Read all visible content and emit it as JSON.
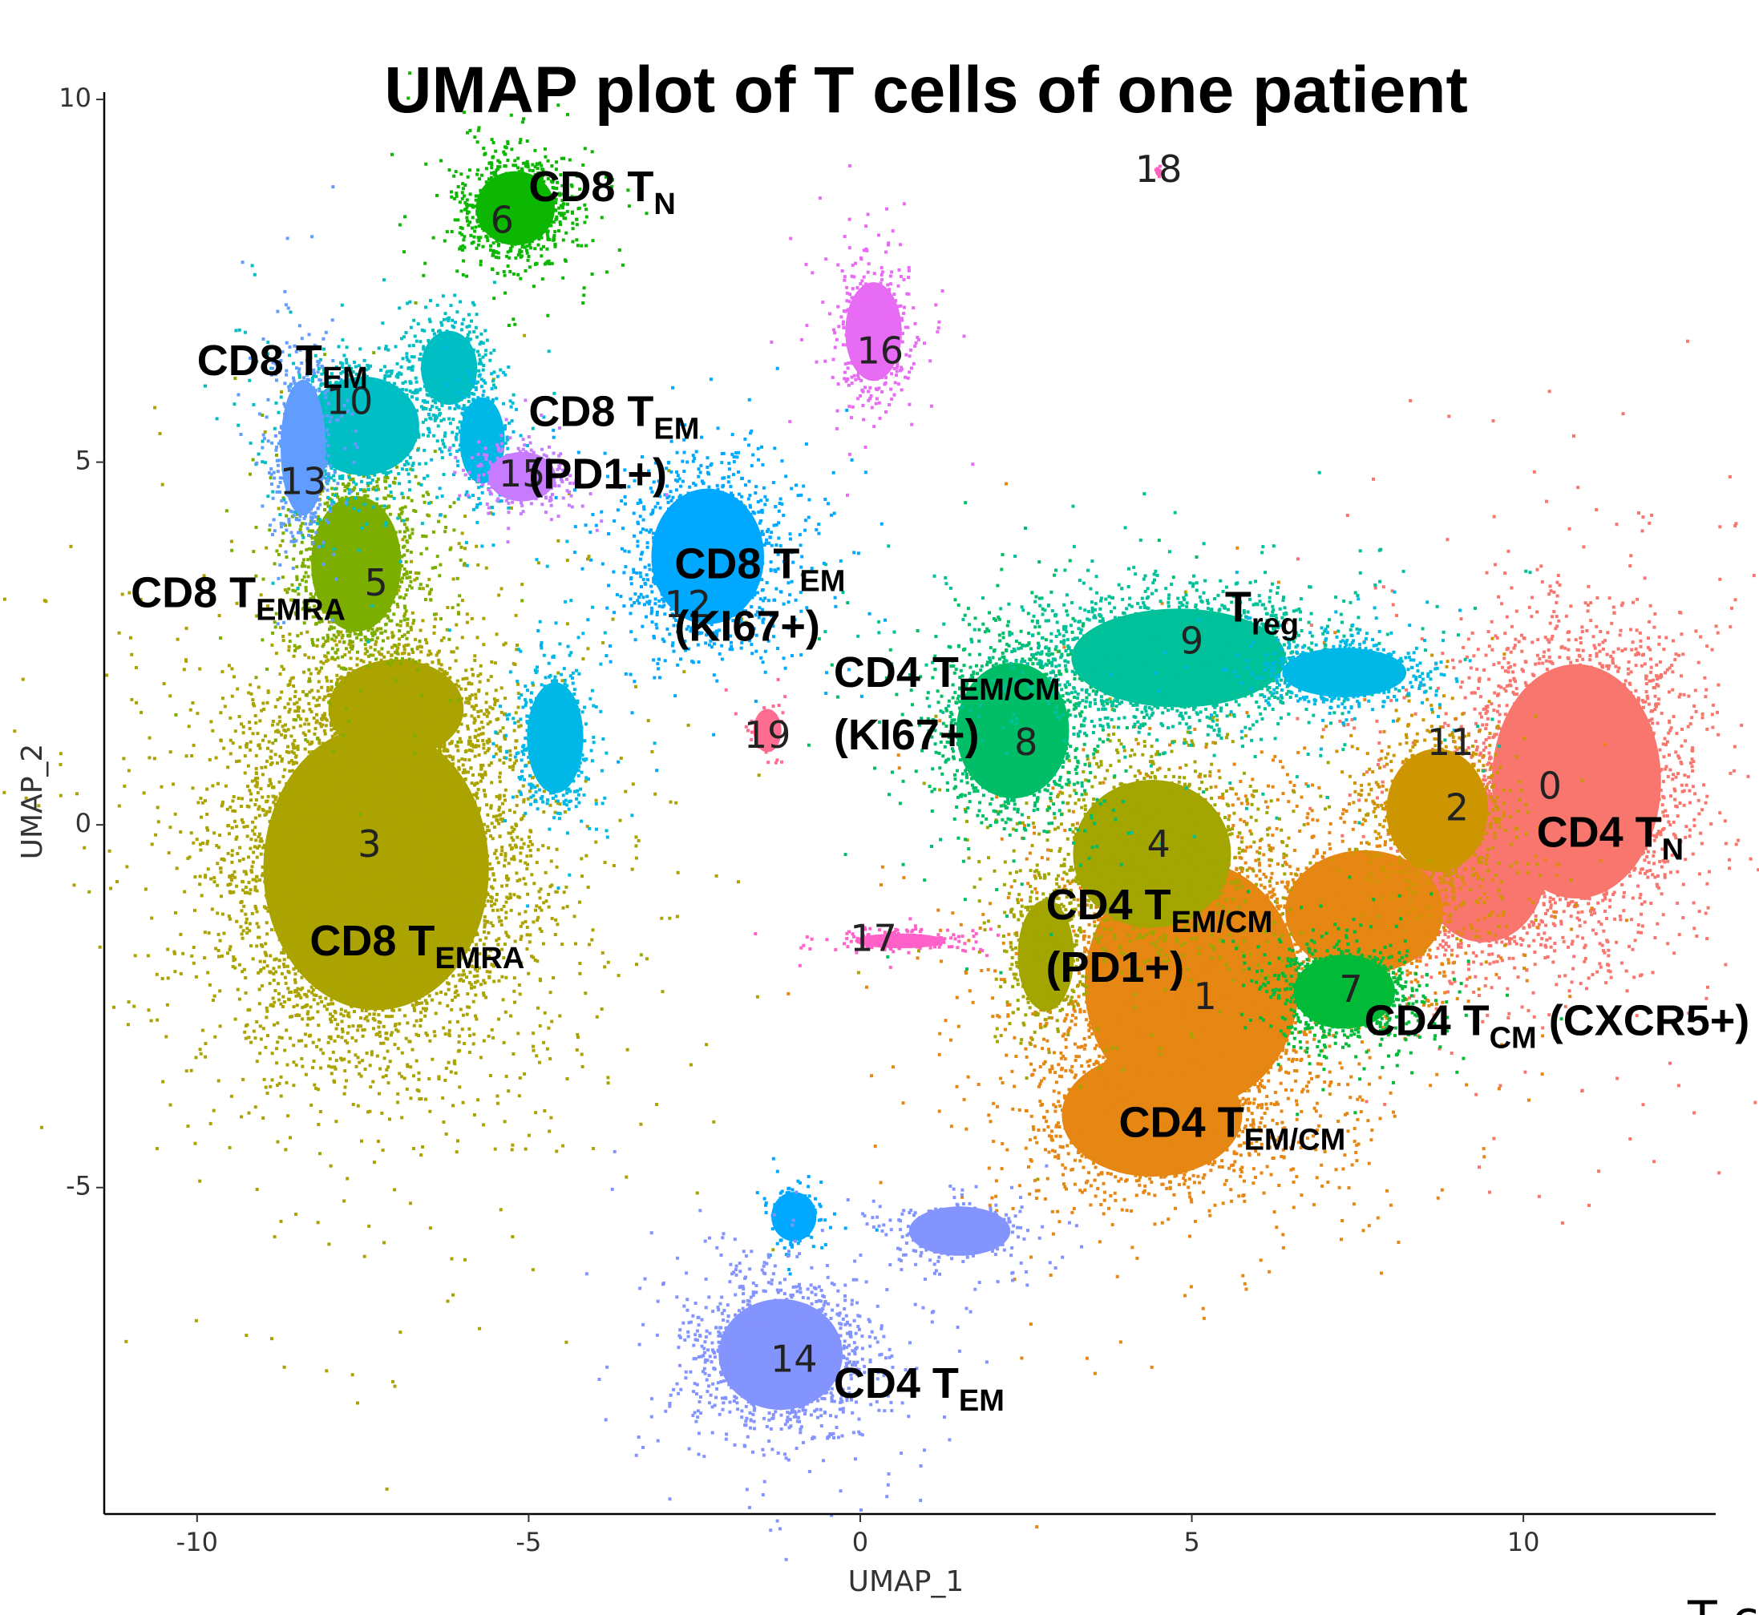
{
  "chart_data": {
    "type": "scatter",
    "title": "UMAP plot of T cells of one patient",
    "xlabel": "UMAP_1",
    "ylabel": "UMAP_2",
    "xlim": [
      -11.4,
      12.9
    ],
    "ylim": [
      -9.5,
      10.1
    ],
    "xticks": [
      -10,
      -5,
      0,
      5,
      10
    ],
    "yticks": [
      -5,
      0,
      5,
      10
    ],
    "grid": false,
    "legend": "none",
    "clusters": [
      {
        "id": "0",
        "color": "#F8766D",
        "label_xy": [
          10.4,
          0.5
        ],
        "blobs": [
          [
            10.8,
            0.6,
            1.5,
            1.9,
            2800
          ],
          [
            9.4,
            -0.6,
            1.1,
            1.2,
            900
          ]
        ]
      },
      {
        "id": "1",
        "color": "#E68613",
        "label_xy": [
          5.2,
          -2.4
        ],
        "blobs": [
          [
            5.0,
            -2.2,
            1.9,
            2.0,
            2600
          ],
          [
            4.4,
            -4.0,
            1.6,
            1.0,
            1200
          ],
          [
            7.6,
            -1.2,
            1.4,
            1.0,
            900
          ]
        ]
      },
      {
        "id": "2",
        "color": "#CD9600",
        "label_xy": [
          9.0,
          0.2
        ],
        "blobs": [
          [
            8.7,
            0.2,
            0.9,
            1.0,
            900
          ]
        ]
      },
      {
        "id": "3",
        "color": "#ABA300",
        "label_xy": [
          -7.4,
          -0.3
        ],
        "blobs": [
          [
            -7.3,
            -0.6,
            2.0,
            2.3,
            5200
          ],
          [
            -7.0,
            1.6,
            1.2,
            0.8,
            900
          ]
        ]
      },
      {
        "id": "4",
        "color": "#A3A500",
        "label_xy": [
          4.5,
          -0.3
        ],
        "blobs": [
          [
            4.4,
            -0.4,
            1.4,
            1.2,
            1300
          ],
          [
            2.8,
            -1.8,
            0.5,
            0.9,
            400
          ]
        ]
      },
      {
        "id": "5",
        "color": "#7CAE00",
        "label_xy": [
          -7.3,
          3.3
        ],
        "blobs": [
          [
            -7.6,
            3.6,
            0.8,
            1.1,
            1400
          ]
        ]
      },
      {
        "id": "6",
        "color": "#0CB702",
        "label_xy": [
          -5.4,
          8.3
        ],
        "blobs": [
          [
            -5.2,
            8.5,
            0.7,
            0.6,
            1000
          ]
        ]
      },
      {
        "id": "7",
        "color": "#00BA38",
        "label_xy": [
          7.4,
          -2.3
        ],
        "blobs": [
          [
            7.3,
            -2.3,
            0.9,
            0.6,
            900
          ]
        ]
      },
      {
        "id": "8",
        "color": "#00BE67",
        "label_xy": [
          2.5,
          1.1
        ],
        "blobs": [
          [
            2.3,
            1.3,
            1.0,
            1.1,
            1300
          ]
        ]
      },
      {
        "id": "9",
        "color": "#00C19A",
        "label_xy": [
          5.0,
          2.5
        ],
        "blobs": [
          [
            4.8,
            2.3,
            1.9,
            0.8,
            2000
          ]
        ]
      },
      {
        "id": "10",
        "color": "#00BFC4",
        "label_xy": [
          -7.7,
          5.8
        ],
        "blobs": [
          [
            -7.5,
            5.5,
            1.0,
            0.8,
            1000
          ],
          [
            -6.2,
            6.3,
            0.5,
            0.6,
            400
          ]
        ]
      },
      {
        "id": "11",
        "color": "#00B8E7",
        "label_xy": [
          8.9,
          1.1
        ],
        "blobs": [
          [
            7.3,
            2.1,
            1.1,
            0.4,
            600
          ],
          [
            -4.6,
            1.2,
            0.5,
            0.9,
            500
          ],
          [
            -5.7,
            5.3,
            0.4,
            0.7,
            300
          ]
        ]
      },
      {
        "id": "12",
        "color": "#00A9FF",
        "label_xy": [
          -2.6,
          3.0
        ],
        "blobs": [
          [
            -2.3,
            3.7,
            1.0,
            1.1,
            1300
          ],
          [
            -1.0,
            -5.4,
            0.4,
            0.4,
            150
          ]
        ]
      },
      {
        "id": "13",
        "color": "#619CFF",
        "label_xy": [
          -8.4,
          4.7
        ],
        "blobs": [
          [
            -8.4,
            5.2,
            0.4,
            1.1,
            600
          ]
        ]
      },
      {
        "id": "14",
        "color": "#8494FF",
        "label_xy": [
          -1.0,
          -7.4
        ],
        "blobs": [
          [
            -1.2,
            -7.3,
            1.1,
            0.9,
            1500
          ],
          [
            1.5,
            -5.6,
            0.9,
            0.4,
            300
          ]
        ]
      },
      {
        "id": "15",
        "color": "#C77CFF",
        "label_xy": [
          -5.1,
          4.8
        ],
        "blobs": [
          [
            -5.1,
            4.8,
            0.6,
            0.4,
            300
          ]
        ]
      },
      {
        "id": "16",
        "color": "#E76BF3",
        "label_xy": [
          0.3,
          6.5
        ],
        "blobs": [
          [
            0.2,
            6.8,
            0.5,
            0.8,
            500
          ]
        ]
      },
      {
        "id": "17",
        "color": "#FF61C9",
        "label_xy": [
          0.2,
          -1.6
        ],
        "blobs": [
          [
            0.6,
            -1.6,
            0.8,
            0.12,
            200
          ]
        ]
      },
      {
        "id": "18",
        "color": "#FF62BC",
        "label_xy": [
          4.5,
          9.0
        ],
        "blobs": [
          [
            4.5,
            9.0,
            0.06,
            0.06,
            8
          ]
        ]
      },
      {
        "id": "19",
        "color": "#FF6C91",
        "label_xy": [
          -1.4,
          1.2
        ],
        "blobs": [
          [
            -1.4,
            1.3,
            0.25,
            0.35,
            60
          ]
        ]
      }
    ],
    "annotations": [
      {
        "main": "CD8 T",
        "sub": "N",
        "tail": "",
        "line2": "",
        "xy": [
          -5.0,
          8.6
        ]
      },
      {
        "main": "CD8 T",
        "sub": "EM",
        "tail": "",
        "line2": "",
        "xy": [
          -10.0,
          6.2
        ]
      },
      {
        "main": "CD8 T",
        "sub": "EM",
        "tail": "",
        "line2": "(PD1+)",
        "xy": [
          -5.0,
          5.5
        ]
      },
      {
        "main": "CD8 T",
        "sub": "EMRA",
        "tail": "",
        "line2": "",
        "xy": [
          -11.0,
          3.0
        ]
      },
      {
        "main": "CD8 T",
        "sub": "EM",
        "tail": "",
        "line2": "(KI67+)",
        "xy": [
          -2.8,
          3.4
        ]
      },
      {
        "main": "CD8 T",
        "sub": "EMRA",
        "tail": "",
        "line2": "",
        "xy": [
          -8.3,
          -1.8
        ]
      },
      {
        "main": "T",
        "sub": "reg",
        "tail": "",
        "line2": "",
        "xy": [
          5.5,
          2.8
        ]
      },
      {
        "main": "CD4 T",
        "sub": "EM/CM",
        "tail": "",
        "line2": "(KI67+)",
        "xy": [
          -0.4,
          1.9
        ]
      },
      {
        "main": "CD4 T",
        "sub": "N",
        "tail": "",
        "line2": "",
        "xy": [
          10.2,
          -0.3
        ]
      },
      {
        "main": "CD4 T",
        "sub": "EM/CM",
        "tail": "",
        "line2": "(PD1+)",
        "xy": [
          2.8,
          -1.3
        ]
      },
      {
        "main": "CD4 T",
        "sub": "CM",
        "tail": " (CXCR5+)",
        "line2": "",
        "xy": [
          7.6,
          -2.9
        ]
      },
      {
        "main": "CD4 T",
        "sub": "EM/CM",
        "tail": "",
        "line2": "",
        "xy": [
          3.9,
          -4.3
        ]
      },
      {
        "main": "CD4 T",
        "sub": "EM",
        "tail": "",
        "line2": "",
        "xy": [
          -0.4,
          -7.9
        ]
      }
    ]
  },
  "corner_text": "T c"
}
